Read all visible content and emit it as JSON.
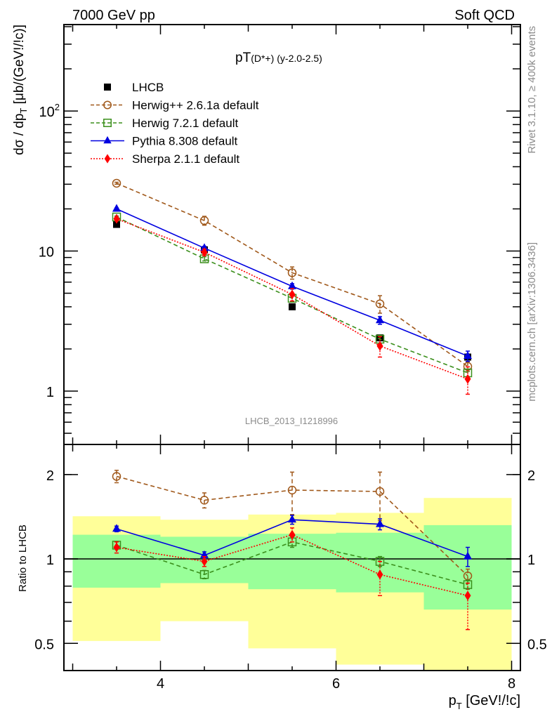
{
  "header": {
    "left": "7000 GeV pp",
    "right": "Soft QCD"
  },
  "side_labels": {
    "rivet": "Rivet 3.1.10, ≥ 400k events",
    "mcplots": "mcplots.cern.ch [arXiv:1306.3436]"
  },
  "analysis_id": "LHCB_2013_I1218996",
  "chart_data": [
    {
      "type": "line",
      "panel": "main",
      "title_main": "pT",
      "title_sub": "(D*+)",
      "title_tail": "(y-2.0-2.5)",
      "xlabel": "p_T [GeV!/!c]",
      "ylabel": "dσ / dp_T [μb/(GeV!/!c)]",
      "yscale": "log",
      "xlim": [
        2.9,
        8.1
      ],
      "ylim": [
        0.416,
        414
      ],
      "ytick_labels": [
        "1",
        "10",
        "10²"
      ],
      "ytick_values": [
        1,
        10,
        100
      ],
      "legend_position": "top-left",
      "x": [
        3.5,
        4.5,
        5.5,
        6.5,
        7.5
      ],
      "series": [
        {
          "name": "LHCB",
          "color": "#000000",
          "marker": "square-filled",
          "line": "none",
          "values": [
            15.5,
            10.2,
            4.0,
            2.4,
            1.75
          ]
        },
        {
          "name": "Herwig++ 2.6.1a default",
          "color": "#a0581a",
          "marker": "circle-open",
          "line": "dashed",
          "values": [
            30.5,
            16.5,
            7.0,
            4.2,
            1.5
          ],
          "errors": [
            0.5,
            1.2,
            0.7,
            0.6,
            0.12
          ]
        },
        {
          "name": "Herwig 7.2.1 default",
          "color": "#3b8f1c",
          "marker": "square-open",
          "line": "dashed",
          "values": [
            17.5,
            8.8,
            4.6,
            2.35,
            1.35
          ],
          "errors": [
            0.3,
            0.3,
            0.25,
            0.15,
            0.08
          ]
        },
        {
          "name": "Pythia 8.308 default",
          "color": "#0000e0",
          "marker": "triangle-filled",
          "line": "solid",
          "values": [
            20.0,
            10.5,
            5.6,
            3.2,
            1.78
          ],
          "errors": [
            0.3,
            0.3,
            0.25,
            0.2,
            0.15
          ]
        },
        {
          "name": "Sherpa 2.1.1 default",
          "color": "#ff0000",
          "marker": "diamond-filled",
          "line": "dotted",
          "values": [
            17.0,
            9.8,
            4.9,
            2.1,
            1.22
          ],
          "errors": [
            0.5,
            0.5,
            0.5,
            0.35,
            0.27
          ]
        }
      ]
    },
    {
      "type": "line",
      "panel": "ratio",
      "ylabel": "Ratio to LHCB",
      "xlabel": "p_T [GeV!/!c]",
      "yscale": "log",
      "xlim": [
        2.9,
        8.1
      ],
      "ylim": [
        0.4,
        2.56
      ],
      "xtick_labels": [
        "4",
        "6",
        "8"
      ],
      "xtick_values": [
        4,
        6,
        8
      ],
      "ytick_labels": [
        "0.5",
        "1",
        "2"
      ],
      "ytick_values": [
        0.5,
        1,
        2
      ],
      "reference_line": 1,
      "bins": [
        [
          3,
          4
        ],
        [
          4,
          5
        ],
        [
          5,
          6
        ],
        [
          6,
          7
        ],
        [
          7,
          8
        ]
      ],
      "band_yellow": {
        "color": "#ffff99",
        "low": [
          0.51,
          0.6,
          0.48,
          0.42,
          0.4
        ],
        "high": [
          1.42,
          1.38,
          1.44,
          1.46,
          1.65
        ]
      },
      "band_green": {
        "color": "#99ff99",
        "low": [
          0.79,
          0.82,
          0.78,
          0.76,
          0.66
        ],
        "high": [
          1.22,
          1.2,
          1.23,
          1.24,
          1.32
        ]
      },
      "x": [
        3.5,
        4.5,
        5.5,
        6.5,
        7.5
      ],
      "series": [
        {
          "name": "Herwig++ 2.6.1a default",
          "color": "#a0581a",
          "marker": "circle-open",
          "line": "dashed",
          "values": [
            1.97,
            1.62,
            1.76,
            1.74,
            0.87
          ],
          "err_low": [
            0.1,
            0.1,
            0.32,
            0.37,
            0.05
          ],
          "err_high": [
            0.1,
            0.1,
            0.28,
            0.3,
            0.05
          ]
        },
        {
          "name": "Herwig 7.2.1 default",
          "color": "#3b8f1c",
          "marker": "square-open",
          "line": "dashed",
          "values": [
            1.12,
            0.88,
            1.15,
            0.98,
            0.81
          ],
          "err_low": [
            0.03,
            0.03,
            0.05,
            0.04,
            0.03
          ],
          "err_high": [
            0.03,
            0.03,
            0.05,
            0.04,
            0.03
          ]
        },
        {
          "name": "Pythia 8.308 default",
          "color": "#0000e0",
          "marker": "triangle-filled",
          "line": "solid",
          "values": [
            1.28,
            1.03,
            1.38,
            1.33,
            1.02
          ],
          "err_low": [
            0.03,
            0.03,
            0.05,
            0.06,
            0.08
          ],
          "err_high": [
            0.03,
            0.03,
            0.05,
            0.06,
            0.08
          ]
        },
        {
          "name": "Sherpa 2.1.1 default",
          "color": "#ff0000",
          "marker": "diamond-filled",
          "line": "dotted",
          "values": [
            1.1,
            0.98,
            1.22,
            0.88,
            0.74
          ],
          "err_low": [
            0.05,
            0.04,
            0.07,
            0.14,
            0.18
          ],
          "err_high": [
            0.05,
            0.04,
            0.07,
            0.1,
            0.08
          ]
        }
      ]
    }
  ]
}
